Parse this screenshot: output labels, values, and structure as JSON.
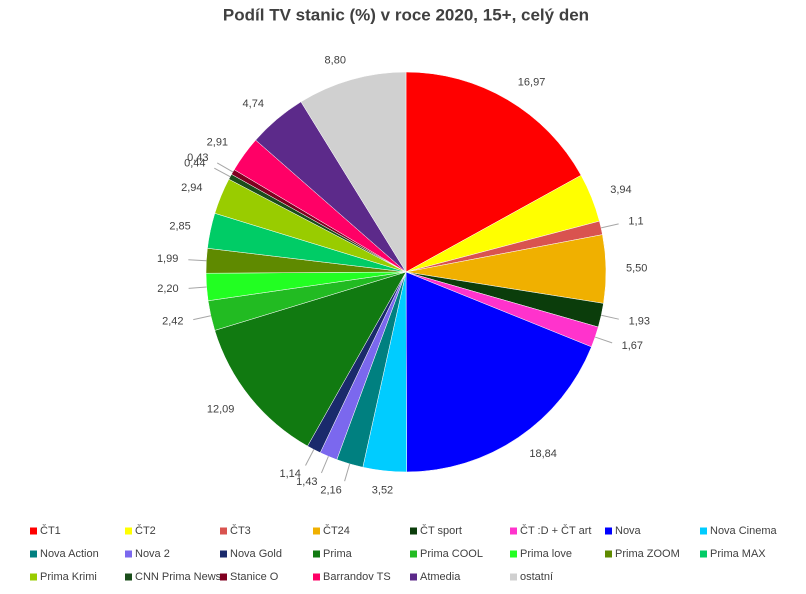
{
  "chart_data": {
    "type": "pie",
    "title": "Podíl TV stanic (%) v roce 2020, 15+, celý den",
    "categories": [
      "ČT1",
      "ČT2",
      "ČT3",
      "ČT24",
      "ČT sport",
      "ČT :D + ČT art",
      "Nova",
      "Nova Cinema",
      "Nova Action",
      "Nova 2",
      "Nova Gold",
      "Prima",
      "Prima COOL",
      "Prima love",
      "Prima ZOOM",
      "Prima MAX",
      "Prima Krimi",
      "CNN Prima News",
      "Stanice O",
      "Barrandov TS",
      "Atmedia",
      "ostatní"
    ],
    "values": [
      16.97,
      3.94,
      1.1,
      5.5,
      1.93,
      1.67,
      18.84,
      3.52,
      2.16,
      1.43,
      1.14,
      12.09,
      2.42,
      2.2,
      1.99,
      2.85,
      2.94,
      0.44,
      0.43,
      2.91,
      4.74,
      8.8
    ],
    "value_labels": [
      "16,97",
      "3,94",
      "1,1",
      "5,50",
      "1,93",
      "1,67",
      "18,84",
      "3,52",
      "2,16",
      "1,43",
      "1,14",
      "12,09",
      "2,42",
      "2,20",
      "1,99",
      "2,85",
      "2,94",
      "0,44",
      "0,43",
      "2,91",
      "4,74",
      "8,80"
    ],
    "colors": [
      "#ff0000",
      "#ffff00",
      "#d9534f",
      "#f0b000",
      "#0b3d0b",
      "#ff33cc",
      "#0000ff",
      "#00ccff",
      "#008080",
      "#7b68ee",
      "#1a2a6c",
      "#117a11",
      "#22bb22",
      "#22ff22",
      "#5f8a00",
      "#00cc66",
      "#99cc00",
      "#1a4d1a",
      "#800020",
      "#ff0066",
      "#5c2a8a",
      "#d0d0d0"
    ]
  }
}
